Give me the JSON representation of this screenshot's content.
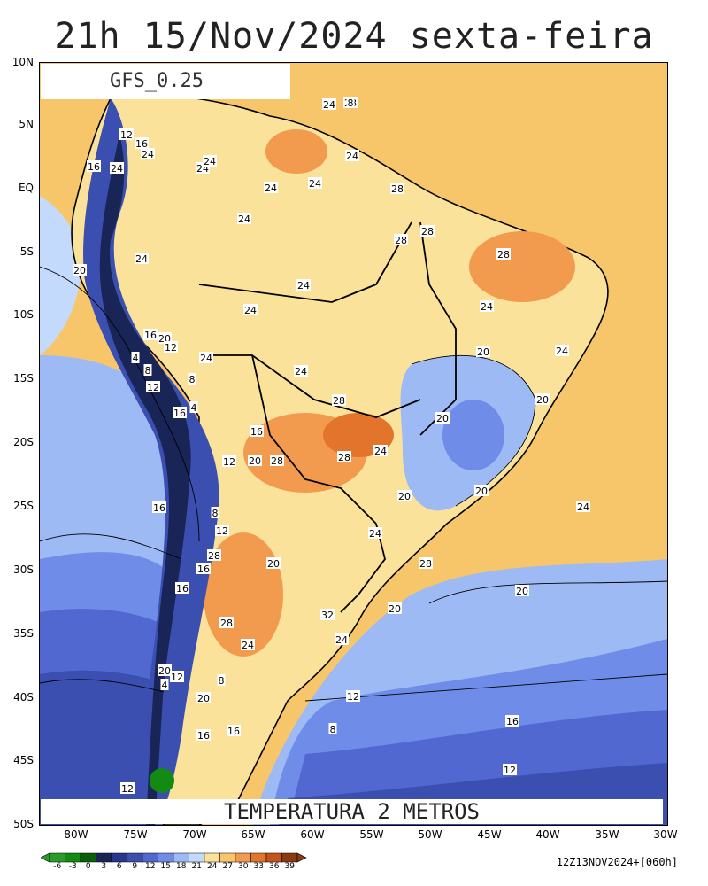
{
  "title": "21h 15/Nov/2024 sexta-feira",
  "model": "GFS_0.25",
  "variable": "TEMPERATURA 2 METROS",
  "run_info": "12Z13NOV2024+[060h]",
  "lat_labels": [
    "10N",
    "5N",
    "EQ",
    "5S",
    "10S",
    "15S",
    "20S",
    "25S",
    "30S",
    "35S",
    "40S",
    "45S",
    "50S"
  ],
  "lon_labels": [
    "80W",
    "75W",
    "70W",
    "65W",
    "60W",
    "55W",
    "50W",
    "45W",
    "40W",
    "35W",
    "30W"
  ],
  "colorbar": {
    "labels": [
      "-6",
      "-3",
      "0",
      "3",
      "6",
      "9",
      "12",
      "15",
      "18",
      "21",
      "24",
      "27",
      "30",
      "33",
      "36",
      "39"
    ],
    "colors": [
      "#2a9a2a",
      "#138a13",
      "#0b5f0b",
      "#182556",
      "#27358a",
      "#3a4fb0",
      "#5068cf",
      "#6f8ce8",
      "#9ebaf5",
      "#c3dafc",
      "#fbe29a",
      "#f8c66a",
      "#f29a4e",
      "#e2742c",
      "#c4541c",
      "#8a3a12"
    ]
  },
  "contour_labels": [
    {
      "text": "28",
      "icon": "label"
    },
    {
      "text": "24",
      "icon": "label"
    },
    {
      "text": "12",
      "icon": "label"
    },
    {
      "text": "16",
      "icon": "label"
    },
    {
      "text": "24",
      "icon": "label"
    },
    {
      "text": "16",
      "icon": "label"
    },
    {
      "text": "24",
      "icon": "label"
    },
    {
      "text": "24",
      "icon": "label"
    },
    {
      "text": "24",
      "icon": "label"
    },
    {
      "text": "24",
      "icon": "label"
    },
    {
      "text": "28",
      "icon": "label"
    },
    {
      "text": "24",
      "icon": "label"
    },
    {
      "text": "24",
      "icon": "label"
    },
    {
      "text": "28",
      "icon": "label"
    },
    {
      "text": "24",
      "icon": "label"
    },
    {
      "text": "28",
      "icon": "label"
    },
    {
      "text": "28",
      "icon": "label"
    },
    {
      "text": "20",
      "icon": "label"
    },
    {
      "text": "24",
      "icon": "label"
    },
    {
      "text": "24",
      "icon": "label"
    },
    {
      "text": "24",
      "icon": "label"
    },
    {
      "text": "24",
      "icon": "label"
    },
    {
      "text": "16",
      "icon": "label"
    },
    {
      "text": "20",
      "icon": "label"
    },
    {
      "text": "12",
      "icon": "label"
    },
    {
      "text": "24",
      "icon": "label"
    },
    {
      "text": "4",
      "icon": "label"
    },
    {
      "text": "8",
      "icon": "label"
    },
    {
      "text": "12",
      "icon": "label"
    },
    {
      "text": "8",
      "icon": "label"
    },
    {
      "text": "24",
      "icon": "label"
    },
    {
      "text": "20",
      "icon": "label"
    },
    {
      "text": "24",
      "icon": "label"
    },
    {
      "text": "16",
      "icon": "label"
    },
    {
      "text": "4",
      "icon": "label"
    },
    {
      "text": "28",
      "icon": "label"
    },
    {
      "text": "20",
      "icon": "label"
    },
    {
      "text": "20",
      "icon": "label"
    },
    {
      "text": "16",
      "icon": "label"
    },
    {
      "text": "12",
      "icon": "label"
    },
    {
      "text": "20",
      "icon": "label"
    },
    {
      "text": "28",
      "icon": "label"
    },
    {
      "text": "28",
      "icon": "label"
    },
    {
      "text": "24",
      "icon": "label"
    },
    {
      "text": "16",
      "icon": "label"
    },
    {
      "text": "20",
      "icon": "label"
    },
    {
      "text": "20",
      "icon": "label"
    },
    {
      "text": "8",
      "icon": "label"
    },
    {
      "text": "12",
      "icon": "label"
    },
    {
      "text": "24",
      "icon": "label"
    },
    {
      "text": "24",
      "icon": "label"
    },
    {
      "text": "28",
      "icon": "label"
    },
    {
      "text": "20",
      "icon": "label"
    },
    {
      "text": "28",
      "icon": "label"
    },
    {
      "text": "16",
      "icon": "label"
    },
    {
      "text": "16",
      "icon": "label"
    },
    {
      "text": "20",
      "icon": "label"
    },
    {
      "text": "20",
      "icon": "label"
    },
    {
      "text": "28",
      "icon": "label"
    },
    {
      "text": "32",
      "icon": "label"
    },
    {
      "text": "24",
      "icon": "label"
    },
    {
      "text": "24",
      "icon": "label"
    },
    {
      "text": "20",
      "icon": "label"
    },
    {
      "text": "12",
      "icon": "label"
    },
    {
      "text": "4",
      "icon": "label"
    },
    {
      "text": "8",
      "icon": "label"
    },
    {
      "text": "20",
      "icon": "label"
    },
    {
      "text": "12",
      "icon": "label"
    },
    {
      "text": "16",
      "icon": "label"
    },
    {
      "text": "16",
      "icon": "label"
    },
    {
      "text": "8",
      "icon": "label"
    },
    {
      "text": "16",
      "icon": "label"
    },
    {
      "text": "12",
      "icon": "label"
    },
    {
      "text": "12",
      "icon": "label"
    },
    {
      "text": "8",
      "icon": "label"
    }
  ]
}
